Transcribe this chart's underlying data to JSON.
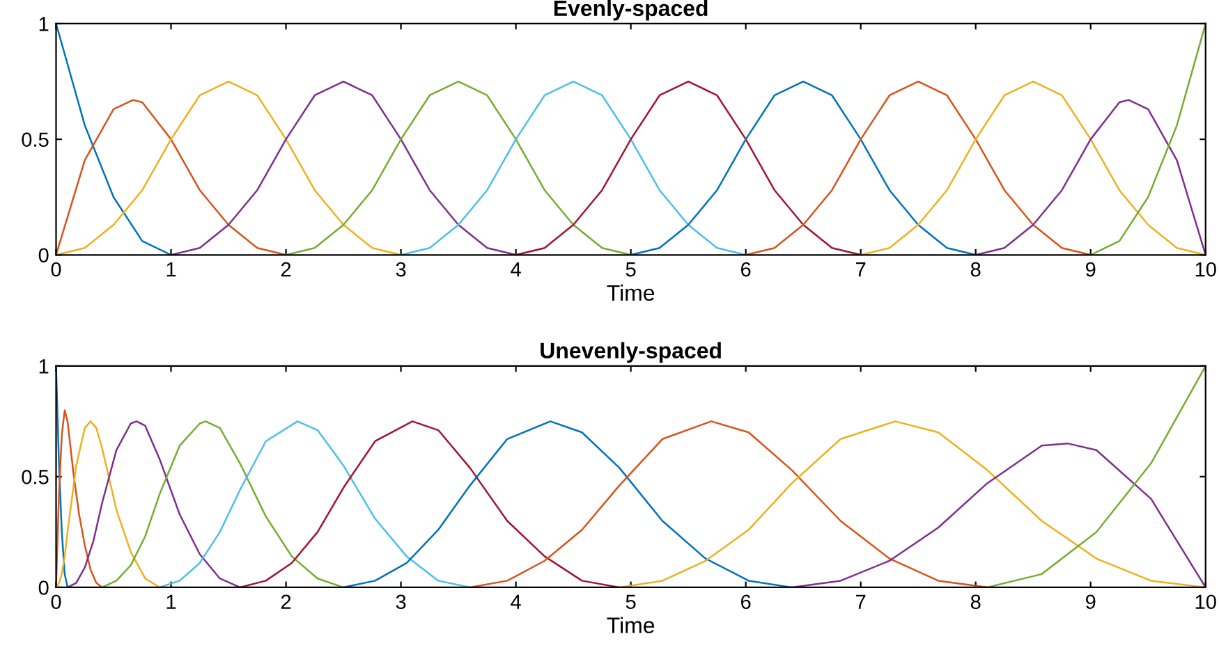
{
  "chart_data": [
    {
      "type": "line",
      "title": "Evenly-spaced",
      "xlabel": "Time",
      "xlim": [
        0,
        10
      ],
      "xticks": [
        0,
        1,
        2,
        3,
        4,
        5,
        6,
        7,
        8,
        9,
        10
      ],
      "ylim": [
        0,
        1
      ],
      "yticks": [
        0,
        0.5,
        1
      ],
      "marker": "none",
      "line_style": "solid",
      "series": [
        {
          "color": "#0072bd",
          "x": [
            0,
            0.25,
            0.5,
            0.75,
            1
          ],
          "values": [
            1,
            0.56,
            0.25,
            0.06,
            0
          ]
        },
        {
          "color": "#d95319",
          "x": [
            0,
            0.25,
            0.5,
            0.67,
            0.75,
            1,
            1.25,
            1.5,
            1.75,
            2
          ],
          "values": [
            0,
            0.41,
            0.63,
            0.67,
            0.66,
            0.5,
            0.28,
            0.13,
            0.03,
            0
          ]
        },
        {
          "color": "#edb120",
          "x": [
            0,
            0.25,
            0.5,
            0.75,
            1,
            1.25,
            1.5,
            1.75,
            2,
            2.25,
            2.5,
            2.75,
            3
          ],
          "values": [
            0,
            0.03,
            0.13,
            0.28,
            0.5,
            0.69,
            0.75,
            0.69,
            0.5,
            0.28,
            0.13,
            0.03,
            0
          ]
        },
        {
          "color": "#7e2f8e",
          "x": [
            1,
            1.25,
            1.5,
            1.75,
            2,
            2.25,
            2.5,
            2.75,
            3,
            3.25,
            3.5,
            3.75,
            4
          ],
          "values": [
            0,
            0.03,
            0.13,
            0.28,
            0.5,
            0.69,
            0.75,
            0.69,
            0.5,
            0.28,
            0.13,
            0.03,
            0
          ]
        },
        {
          "color": "#77ac30",
          "x": [
            2,
            2.25,
            2.5,
            2.75,
            3,
            3.25,
            3.5,
            3.75,
            4,
            4.25,
            4.5,
            4.75,
            5
          ],
          "values": [
            0,
            0.03,
            0.13,
            0.28,
            0.5,
            0.69,
            0.75,
            0.69,
            0.5,
            0.28,
            0.13,
            0.03,
            0
          ]
        },
        {
          "color": "#4dbeee",
          "x": [
            3,
            3.25,
            3.5,
            3.75,
            4,
            4.25,
            4.5,
            4.75,
            5,
            5.25,
            5.5,
            5.75,
            6
          ],
          "values": [
            0,
            0.03,
            0.13,
            0.28,
            0.5,
            0.69,
            0.75,
            0.69,
            0.5,
            0.28,
            0.13,
            0.03,
            0
          ]
        },
        {
          "color": "#a2142f",
          "x": [
            4,
            4.25,
            4.5,
            4.75,
            5,
            5.25,
            5.5,
            5.75,
            6,
            6.25,
            6.5,
            6.75,
            7
          ],
          "values": [
            0,
            0.03,
            0.13,
            0.28,
            0.5,
            0.69,
            0.75,
            0.69,
            0.5,
            0.28,
            0.13,
            0.03,
            0
          ]
        },
        {
          "color": "#0072bd",
          "x": [
            5,
            5.25,
            5.5,
            5.75,
            6,
            6.25,
            6.5,
            6.75,
            7,
            7.25,
            7.5,
            7.75,
            8
          ],
          "values": [
            0,
            0.03,
            0.13,
            0.28,
            0.5,
            0.69,
            0.75,
            0.69,
            0.5,
            0.28,
            0.13,
            0.03,
            0
          ]
        },
        {
          "color": "#d95319",
          "x": [
            6,
            6.25,
            6.5,
            6.75,
            7,
            7.25,
            7.5,
            7.75,
            8,
            8.25,
            8.5,
            8.75,
            9
          ],
          "values": [
            0,
            0.03,
            0.13,
            0.28,
            0.5,
            0.69,
            0.75,
            0.69,
            0.5,
            0.28,
            0.13,
            0.03,
            0
          ]
        },
        {
          "color": "#edb120",
          "x": [
            7,
            7.25,
            7.5,
            7.75,
            8,
            8.25,
            8.5,
            8.75,
            9,
            9.25,
            9.5,
            9.75,
            10
          ],
          "values": [
            0,
            0.03,
            0.13,
            0.28,
            0.5,
            0.69,
            0.75,
            0.69,
            0.5,
            0.28,
            0.13,
            0.03,
            0
          ]
        },
        {
          "color": "#7e2f8e",
          "x": [
            8,
            8.25,
            8.5,
            8.75,
            9,
            9.25,
            9.33,
            9.5,
            9.75,
            10
          ],
          "values": [
            0,
            0.03,
            0.13,
            0.28,
            0.5,
            0.66,
            0.67,
            0.63,
            0.41,
            0
          ]
        },
        {
          "color": "#77ac30",
          "x": [
            9,
            9.25,
            9.5,
            9.75,
            10
          ],
          "values": [
            0,
            0.06,
            0.25,
            0.56,
            1
          ]
        }
      ]
    },
    {
      "type": "line",
      "title": "Unevenly-spaced",
      "xlabel": "Time",
      "xlim": [
        0,
        10
      ],
      "xticks": [
        0,
        1,
        2,
        3,
        4,
        5,
        6,
        7,
        8,
        9,
        10
      ],
      "ylim": [
        0,
        1
      ],
      "yticks": [
        0,
        0.5,
        1
      ],
      "marker": "none",
      "line_style": "solid",
      "series": [
        {
          "color": "#0072bd",
          "x": [
            0,
            0.025,
            0.05,
            0.075,
            0.1
          ],
          "values": [
            1,
            0.56,
            0.25,
            0.06,
            0
          ]
        },
        {
          "color": "#d95319",
          "x": [
            0,
            0.025,
            0.05,
            0.075,
            0.1,
            0.15,
            0.2,
            0.25,
            0.3,
            0.35,
            0.4
          ],
          "values": [
            0,
            0.42,
            0.69,
            0.8,
            0.75,
            0.52,
            0.33,
            0.19,
            0.08,
            0.02,
            0
          ]
        },
        {
          "color": "#edb120",
          "x": [
            0,
            0.025,
            0.05,
            0.075,
            0.1,
            0.175,
            0.25,
            0.3,
            0.35,
            0.4,
            0.525,
            0.65,
            0.775,
            0.9
          ],
          "values": [
            0,
            0.02,
            0.06,
            0.14,
            0.25,
            0.55,
            0.72,
            0.75,
            0.72,
            0.63,
            0.35,
            0.16,
            0.04,
            0
          ]
        },
        {
          "color": "#7e2f8e",
          "x": [
            0.1,
            0.175,
            0.25,
            0.325,
            0.4,
            0.525,
            0.65,
            0.7,
            0.775,
            0.9,
            1.075,
            1.25,
            1.425,
            1.6
          ],
          "values": [
            0,
            0.02,
            0.09,
            0.21,
            0.38,
            0.62,
            0.74,
            0.75,
            0.73,
            0.58,
            0.33,
            0.15,
            0.04,
            0
          ]
        },
        {
          "color": "#77ac30",
          "x": [
            0.4,
            0.525,
            0.65,
            0.775,
            0.9,
            1.075,
            1.25,
            1.3,
            1.425,
            1.6,
            1.825,
            2.05,
            2.275,
            2.5
          ],
          "values": [
            0,
            0.03,
            0.1,
            0.23,
            0.42,
            0.64,
            0.74,
            0.75,
            0.72,
            0.56,
            0.32,
            0.14,
            0.04,
            0
          ]
        },
        {
          "color": "#4dbeee",
          "x": [
            0.9,
            1.075,
            1.25,
            1.425,
            1.6,
            1.825,
            2.1,
            2.275,
            2.5,
            2.775,
            3.05,
            3.325,
            3.6
          ],
          "values": [
            0,
            0.03,
            0.11,
            0.25,
            0.44,
            0.66,
            0.75,
            0.71,
            0.55,
            0.31,
            0.14,
            0.03,
            0
          ]
        },
        {
          "color": "#a2142f",
          "x": [
            1.6,
            1.825,
            2.05,
            2.275,
            2.5,
            2.775,
            3.1,
            3.325,
            3.6,
            3.925,
            4.25,
            4.575,
            4.9
          ],
          "values": [
            0,
            0.03,
            0.11,
            0.25,
            0.45,
            0.66,
            0.75,
            0.71,
            0.54,
            0.3,
            0.14,
            0.03,
            0
          ]
        },
        {
          "color": "#0072bd",
          "x": [
            2.5,
            2.775,
            3.05,
            3.325,
            3.6,
            3.925,
            4.3,
            4.575,
            4.9,
            5.275,
            5.65,
            6.025,
            6.4
          ],
          "values": [
            0,
            0.03,
            0.11,
            0.26,
            0.46,
            0.67,
            0.75,
            0.7,
            0.54,
            0.3,
            0.13,
            0.03,
            0
          ]
        },
        {
          "color": "#d95319",
          "x": [
            3.6,
            3.925,
            4.25,
            4.575,
            4.9,
            5.275,
            5.7,
            6.025,
            6.4,
            6.825,
            7.25,
            7.675,
            8.1
          ],
          "values": [
            0,
            0.03,
            0.12,
            0.26,
            0.46,
            0.67,
            0.75,
            0.7,
            0.53,
            0.3,
            0.13,
            0.03,
            0
          ]
        },
        {
          "color": "#edb120",
          "x": [
            4.9,
            5.275,
            5.65,
            6.025,
            6.4,
            6.825,
            7.3,
            7.675,
            8.1,
            8.575,
            9.05,
            9.525,
            10
          ],
          "values": [
            0,
            0.03,
            0.12,
            0.26,
            0.47,
            0.67,
            0.75,
            0.7,
            0.53,
            0.3,
            0.13,
            0.03,
            0
          ]
        },
        {
          "color": "#7e2f8e",
          "x": [
            6.4,
            6.825,
            7.25,
            7.675,
            8.1,
            8.575,
            8.8,
            9.05,
            9.525,
            10
          ],
          "values": [
            0,
            0.03,
            0.12,
            0.27,
            0.47,
            0.64,
            0.65,
            0.62,
            0.4,
            0
          ]
        },
        {
          "color": "#77ac30",
          "x": [
            8.1,
            8.575,
            9.05,
            9.525,
            10
          ],
          "values": [
            0,
            0.06,
            0.25,
            0.56,
            1
          ]
        }
      ]
    }
  ]
}
